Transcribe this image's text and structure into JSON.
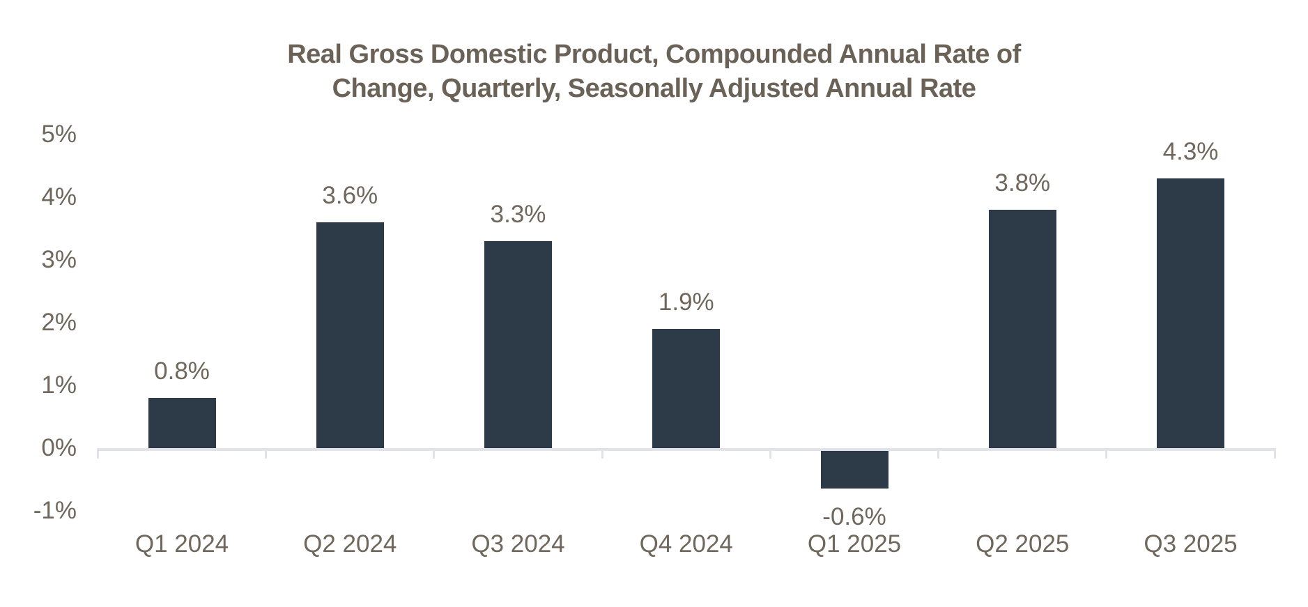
{
  "chart": {
    "title_lines": [
      "Real Gross Domestic Product, Compounded Annual Rate of",
      "Change, Quarterly, Seasonally Adjusted Annual Rate"
    ]
  },
  "chart_data": {
    "type": "bar",
    "title": "Real Gross Domestic Product, Compounded Annual Rate of Change, Quarterly, Seasonally Adjusted Annual Rate",
    "categories": [
      "Q1 2024",
      "Q2 2024",
      "Q3 2024",
      "Q4 2024",
      "Q1 2025",
      "Q2 2025",
      "Q3 2025"
    ],
    "values": [
      0.8,
      3.6,
      3.3,
      1.9,
      -0.6,
      3.8,
      4.3
    ],
    "value_labels": [
      "0.8%",
      "3.6%",
      "3.3%",
      "1.9%",
      "-0.6%",
      "3.8%",
      "4.3%"
    ],
    "xlabel": "",
    "ylabel": "",
    "y_axis": {
      "tick_values": [
        5,
        4,
        3,
        2,
        1,
        0,
        -1
      ],
      "tick_labels": [
        "5%",
        "4%",
        "3%",
        "2%",
        "1%",
        "0%",
        "-1%"
      ]
    },
    "ylim": [
      -1,
      5
    ],
    "grid": false,
    "legend": false,
    "colors": {
      "bar": "#2d3a48",
      "title": "#6a6157",
      "axis_text": "#6f675c",
      "axis_line": "#e1e3e9",
      "background": "#ffffff"
    }
  }
}
